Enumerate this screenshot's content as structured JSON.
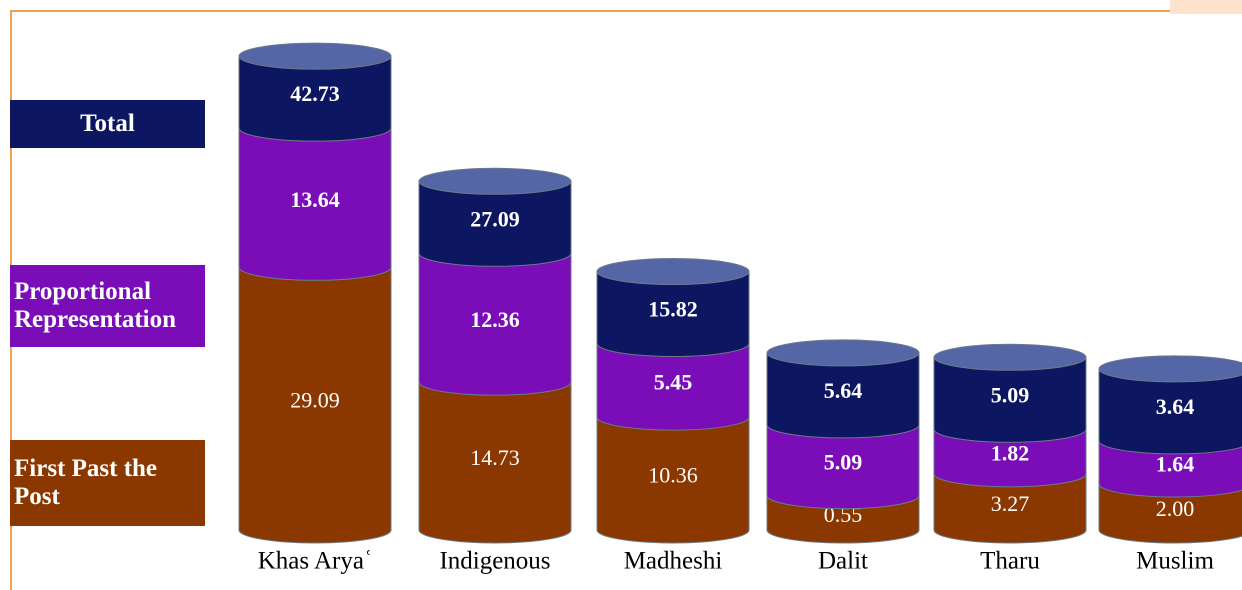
{
  "chart_data": {
    "type": "stacked-cylinder",
    "categories": [
      "Khas Aryaʿ",
      "Indigenous",
      "Madheshi",
      "Dalit",
      "Tharu",
      "Muslim"
    ],
    "series": [
      {
        "name": "First Past the Post",
        "color": "#8a3800",
        "values": [
          29.09,
          14.73,
          10.36,
          0.55,
          3.27,
          2.0
        ],
        "value_labels": [
          "29.09",
          "14.73",
          "10.36",
          "0.55",
          "3.27",
          "2.00"
        ]
      },
      {
        "name": "Proportional Representation",
        "color": "#7a0db8",
        "values": [
          13.64,
          12.36,
          5.45,
          5.09,
          1.82,
          1.64
        ]
      },
      {
        "name": "Total",
        "color": "#0d1660",
        "values": [
          42.73,
          27.09,
          15.82,
          5.64,
          5.09,
          3.64
        ]
      }
    ]
  }
}
